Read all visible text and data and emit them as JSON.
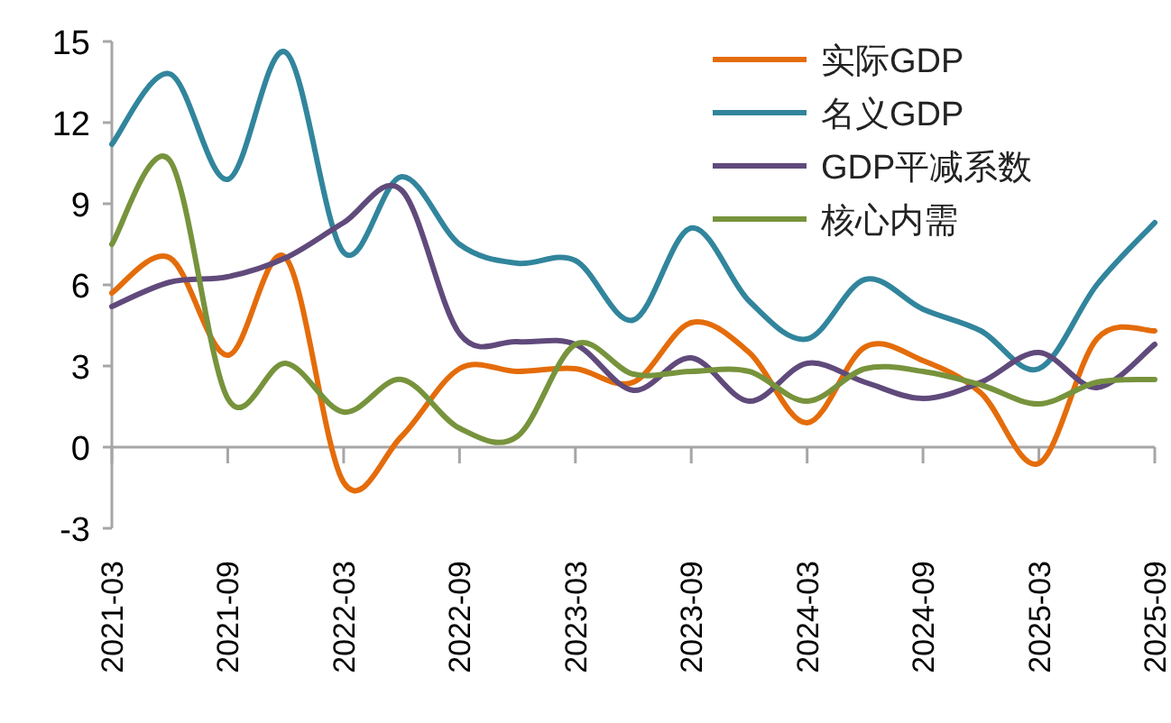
{
  "chart_data": {
    "type": "line",
    "x": [
      "2021-03",
      "2021-06",
      "2021-09",
      "2021-12",
      "2022-03",
      "2022-06",
      "2022-09",
      "2022-12",
      "2023-03",
      "2023-06",
      "2023-09",
      "2023-12",
      "2024-03",
      "2024-06",
      "2024-09",
      "2024-12",
      "2025-03",
      "2025-06",
      "2025-09"
    ],
    "series": [
      {
        "name": "实际GDP",
        "color": "#e46c0a",
        "values": [
          5.7,
          7.0,
          3.4,
          7.0,
          -1.3,
          0.4,
          2.9,
          2.8,
          2.9,
          2.4,
          4.6,
          3.5,
          0.9,
          3.7,
          3.2,
          2.0,
          -0.6,
          4.0,
          4.3
        ]
      },
      {
        "name": "名义GDP",
        "color": "#31859c",
        "values": [
          11.2,
          13.8,
          9.9,
          14.6,
          7.2,
          10.0,
          7.5,
          6.8,
          6.9,
          4.7,
          8.1,
          5.4,
          4.0,
          6.2,
          5.1,
          4.3,
          2.9,
          6.0,
          8.3
        ]
      },
      {
        "name": "GDP平减系数",
        "color": "#604a7b",
        "values": [
          5.2,
          6.1,
          6.3,
          7.0,
          8.3,
          9.5,
          4.2,
          3.9,
          3.8,
          2.1,
          3.3,
          1.7,
          3.1,
          2.4,
          1.8,
          2.4,
          3.5,
          2.2,
          3.8
        ]
      },
      {
        "name": "核心内需",
        "color": "#77933c",
        "values": [
          7.5,
          10.6,
          1.8,
          3.1,
          1.3,
          2.5,
          0.7,
          0.4,
          3.8,
          2.7,
          2.8,
          2.8,
          1.7,
          2.9,
          2.8,
          2.3,
          1.6,
          2.4,
          2.5
        ]
      }
    ],
    "xlim": [
      "2021-03",
      "2025-09"
    ],
    "xticks": [
      "2021-03",
      "2021-09",
      "2022-03",
      "2022-09",
      "2023-03",
      "2023-09",
      "2024-03",
      "2024-09",
      "2025-03",
      "2025-09"
    ],
    "ylim": [
      -3,
      15
    ],
    "yticks": [
      -3,
      0,
      3,
      6,
      9,
      12,
      15
    ],
    "legend": "top right",
    "line_style": "solid"
  }
}
